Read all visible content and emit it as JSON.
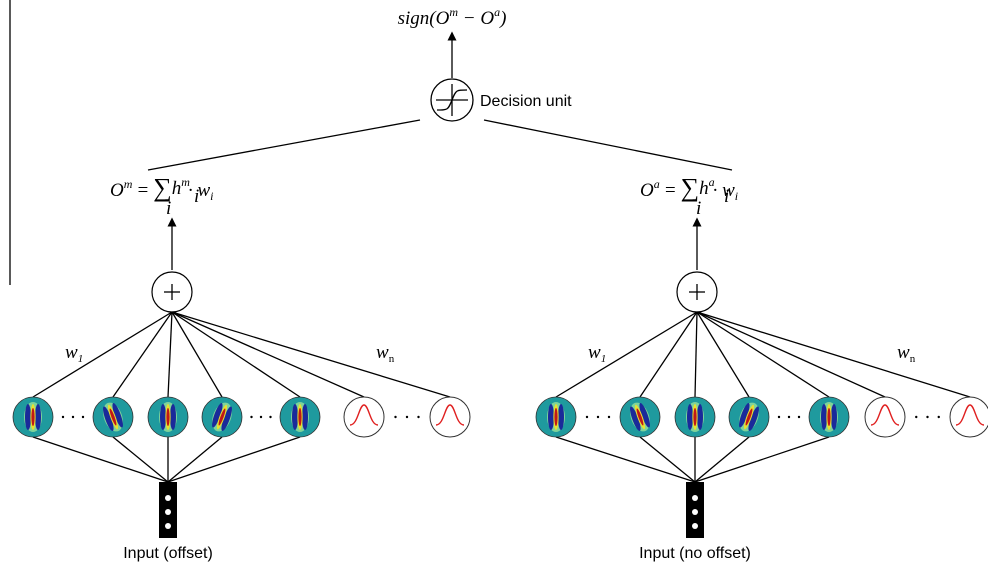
{
  "output": {
    "pre": "sign(O",
    "sup1": "m",
    "mid": " − O",
    "sup2": "a",
    "end": ")"
  },
  "decision_label": "Decision unit",
  "branches": [
    {
      "formula": {
        "lhs": "O",
        "lhs_sup": "m",
        "eq": "=",
        "sum": "∑",
        "sum_sub": "i",
        "h": "h",
        "h_sub": "i",
        "h_sup": "m",
        "dot": "· w",
        "w_sub": "i"
      },
      "w_first": {
        "base": "w",
        "sub": "1"
      },
      "w_last": {
        "base": "w",
        "sub": "n"
      },
      "input_label": "Input (offset)"
    },
    {
      "formula": {
        "lhs": "O",
        "lhs_sup": "a",
        "eq": "=",
        "sum": "∑",
        "sum_sub": "i",
        "h": "h",
        "h_sub": "i",
        "h_sup": "a",
        "dot": "· w",
        "w_sub": "i"
      },
      "w_first": {
        "base": "w",
        "sub": "1"
      },
      "w_last": {
        "base": "w",
        "sub": "n"
      },
      "input_label": "Input (no offset)"
    }
  ]
}
